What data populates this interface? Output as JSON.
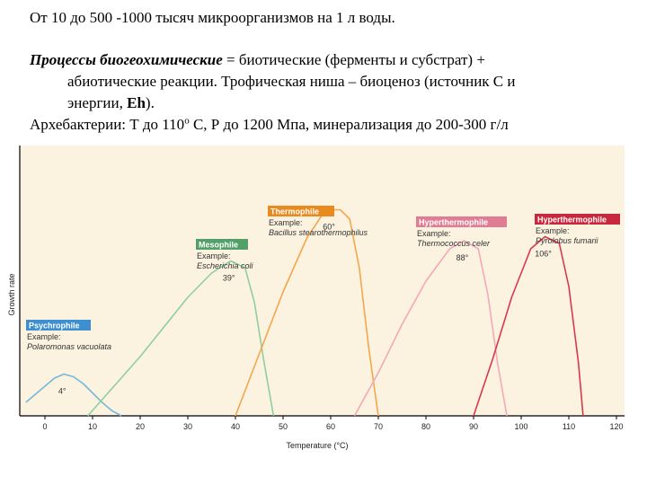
{
  "text": {
    "line1": "От 10 до 500 -1000 тысяч микроорганизмов на 1 л воды.",
    "p2_italic": "Процессы биогеохимические",
    "p2_rest": " = биотические (ферменты и субстрат) +",
    "p2_line2": "абиотические реакции. Трофическая ниша – биоценоз (источник С и",
    "p2_line3_a": "энергии, ",
    "p2_line3_b": "Eh",
    "p2_line3_c": ").",
    "p3_a": "Архебактерии: Т до 110",
    "p3_sup": "о",
    "p3_b": " С, Р до 1200 Мпа, минерализация до 200-300 г/л"
  },
  "chart_data": {
    "type": "line",
    "xlabel": "Temperature (°C)",
    "ylabel": "Growth rate",
    "xlim": [
      -4,
      120
    ],
    "ylim": [
      0,
      1
    ],
    "xticks": [
      0,
      10,
      20,
      30,
      40,
      50,
      60,
      70,
      80,
      90,
      100,
      110,
      120
    ],
    "background": "#fbf3e0",
    "series": [
      {
        "name": "Psychrophile",
        "example_label": "Example:",
        "example": "Polaromonas vacuolata",
        "optimum_label": "4°",
        "color": "#79b7d9",
        "label_bg": "#3d8fcf",
        "x": [
          -4,
          -2,
          0,
          2,
          4,
          6,
          8,
          10,
          12,
          14,
          16
        ],
        "y": [
          0.05,
          0.08,
          0.11,
          0.14,
          0.155,
          0.145,
          0.12,
          0.085,
          0.05,
          0.02,
          0.0
        ]
      },
      {
        "name": "Mesophile",
        "example_label": "Example:",
        "example": "Escherichia coli",
        "optimum_label": "39°",
        "color": "#8fcf9c",
        "label_bg": "#52a068",
        "x": [
          9,
          15,
          20,
          25,
          30,
          35,
          39,
          42,
          44,
          46,
          48
        ],
        "y": [
          0.0,
          0.12,
          0.22,
          0.33,
          0.44,
          0.53,
          0.575,
          0.55,
          0.42,
          0.2,
          0.0
        ]
      },
      {
        "name": "Thermophile",
        "example_label": "Example:",
        "example": "Bacillus stearothermophilus",
        "optimum_label": "60°",
        "color": "#f3a64c",
        "label_bg": "#e98a1f",
        "x": [
          40,
          45,
          50,
          55,
          58,
          60,
          62,
          64,
          66,
          68,
          70
        ],
        "y": [
          0.0,
          0.23,
          0.46,
          0.66,
          0.74,
          0.765,
          0.765,
          0.73,
          0.55,
          0.25,
          0.0
        ]
      },
      {
        "name": "Hyperthermophile",
        "example_label": "Example:",
        "example": "Thermococcus celer",
        "optimum_label": "88°",
        "color": "#f4a8b8",
        "label_bg": "#e07d95",
        "x": [
          65,
          70,
          75,
          80,
          85,
          88,
          91,
          93,
          95,
          97
        ],
        "y": [
          0.0,
          0.16,
          0.34,
          0.5,
          0.62,
          0.65,
          0.62,
          0.45,
          0.2,
          0.0
        ]
      },
      {
        "name": "Hyperthermophile",
        "example_label": "Example:",
        "example": "Pyrolobus fumarii",
        "optimum_label": "106°",
        "color": "#d9384c",
        "label_bg": "#c8283b",
        "x": [
          90,
          94,
          98,
          102,
          105,
          108,
          110,
          112,
          113
        ],
        "y": [
          0.0,
          0.21,
          0.44,
          0.62,
          0.665,
          0.64,
          0.48,
          0.2,
          0.0
        ]
      }
    ]
  }
}
